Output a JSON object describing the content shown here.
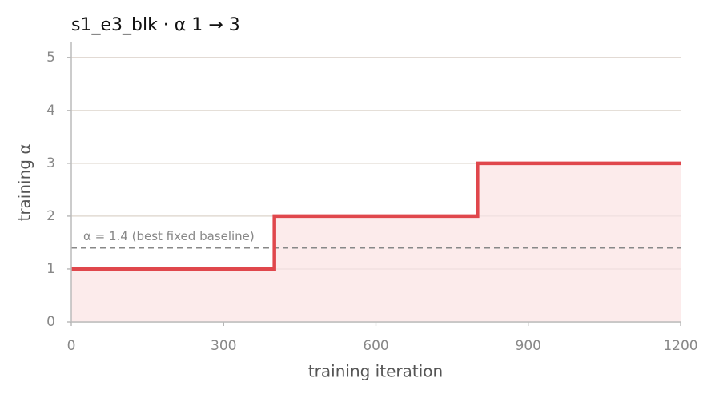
{
  "chart_data": {
    "type": "line",
    "step": "post",
    "title": "s1_e3_blk   ·   α 1 → 3",
    "x": [
      0,
      400,
      800,
      1200
    ],
    "series": [
      {
        "name": "training α",
        "color": "#e0474c",
        "fill": "#fcebeb",
        "values": [
          1,
          2,
          3,
          3
        ]
      }
    ],
    "xlabel": "training iteration",
    "ylabel": "training α",
    "xlim": [
      0,
      1200
    ],
    "xticks": [
      0,
      300,
      600,
      900,
      1200
    ],
    "ylim": [
      0,
      5.3
    ],
    "yticks": [
      0,
      1,
      2,
      3,
      4,
      5
    ],
    "grid": true,
    "reference_line": {
      "value": 1.4,
      "label": "α = 1.4 (best fixed baseline)",
      "color": "#888888"
    }
  }
}
